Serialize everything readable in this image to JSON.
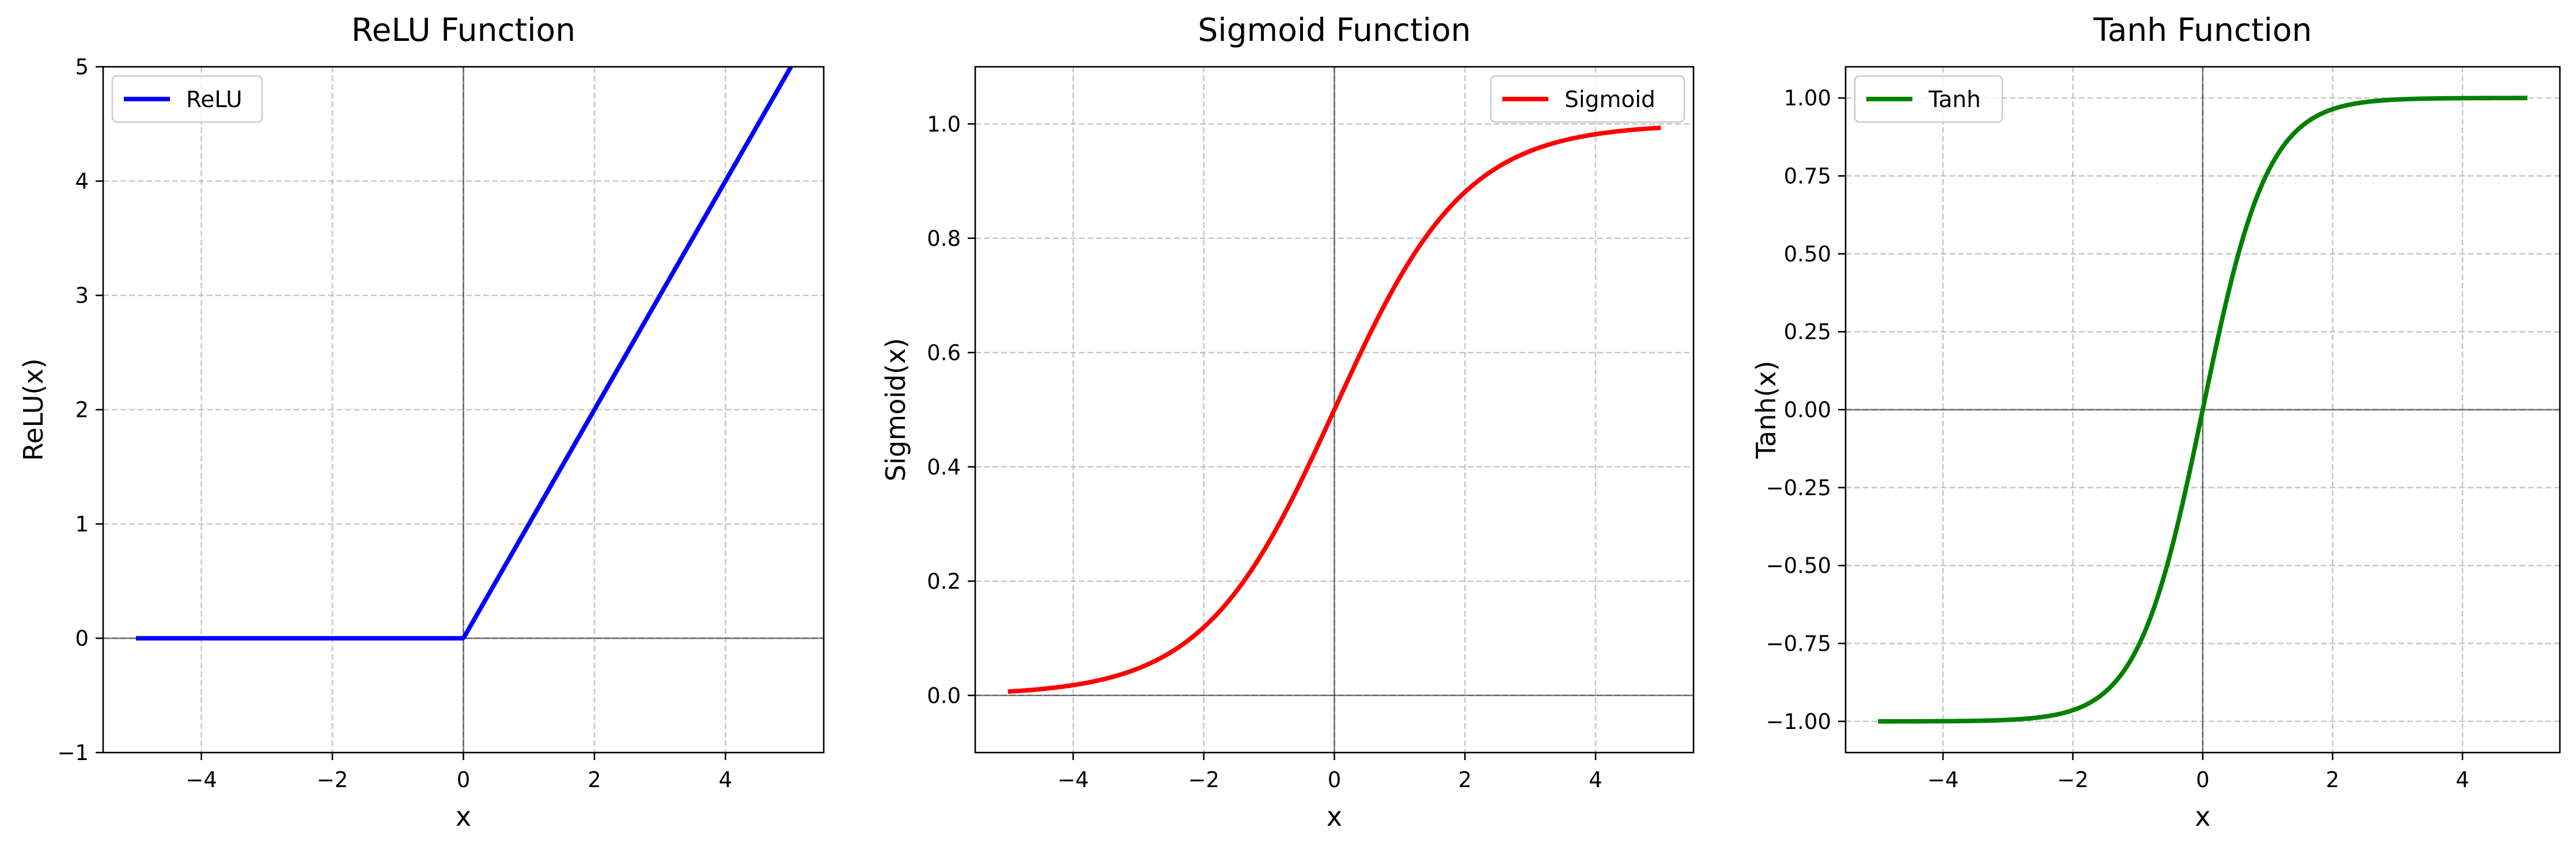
{
  "chart_data": [
    {
      "type": "line",
      "title": "ReLU Function",
      "xlabel": "x",
      "ylabel": "ReLU(x)",
      "xlim": [
        -5.5,
        5.5
      ],
      "ylim": [
        -1,
        5
      ],
      "xticks": [
        -4,
        -2,
        0,
        2,
        4
      ],
      "xtick_labels": [
        "−4",
        "−2",
        "0",
        "2",
        "4"
      ],
      "yticks": [
        -1,
        0,
        1,
        2,
        3,
        4,
        5
      ],
      "ytick_labels": [
        "−1",
        "0",
        "1",
        "2",
        "3",
        "4",
        "5"
      ],
      "grid": true,
      "legend": "top-left",
      "zero_lines": true,
      "series": [
        {
          "name": "ReLU",
          "color": "#0000ff",
          "function": "relu",
          "x_range": [
            -5,
            5
          ],
          "samples": 400
        }
      ]
    },
    {
      "type": "line",
      "title": "Sigmoid Function",
      "xlabel": "x",
      "ylabel": "Sigmoid(x)",
      "xlim": [
        -5.5,
        5.5
      ],
      "ylim": [
        -0.1,
        1.1
      ],
      "xticks": [
        -4,
        -2,
        0,
        2,
        4
      ],
      "xtick_labels": [
        "−4",
        "−2",
        "0",
        "2",
        "4"
      ],
      "yticks": [
        0,
        0.2,
        0.4,
        0.6,
        0.8,
        1.0
      ],
      "ytick_labels": [
        "0.0",
        "0.2",
        "0.4",
        "0.6",
        "0.8",
        "1.0"
      ],
      "grid": true,
      "legend": "top-right",
      "zero_lines": true,
      "series": [
        {
          "name": "Sigmoid",
          "color": "#ff0000",
          "function": "sigmoid",
          "x_range": [
            -5,
            5
          ],
          "samples": 400
        }
      ]
    },
    {
      "type": "line",
      "title": "Tanh Function",
      "xlabel": "x",
      "ylabel": "Tanh(x)",
      "xlim": [
        -5.5,
        5.5
      ],
      "ylim": [
        -1.1,
        1.1
      ],
      "xticks": [
        -4,
        -2,
        0,
        2,
        4
      ],
      "xtick_labels": [
        "−4",
        "−2",
        "0",
        "2",
        "4"
      ],
      "yticks": [
        -1.0,
        -0.75,
        -0.5,
        -0.25,
        0,
        0.25,
        0.5,
        0.75,
        1.0
      ],
      "ytick_labels": [
        "−1.00",
        "−0.75",
        "−0.50",
        "−0.25",
        "0.00",
        "0.25",
        "0.50",
        "0.75",
        "1.00"
      ],
      "grid": true,
      "legend": "top-left",
      "zero_lines": true,
      "series": [
        {
          "name": "Tanh",
          "color": "#008000",
          "function": "tanh",
          "x_range": [
            -5,
            5
          ],
          "samples": 400
        }
      ]
    }
  ]
}
